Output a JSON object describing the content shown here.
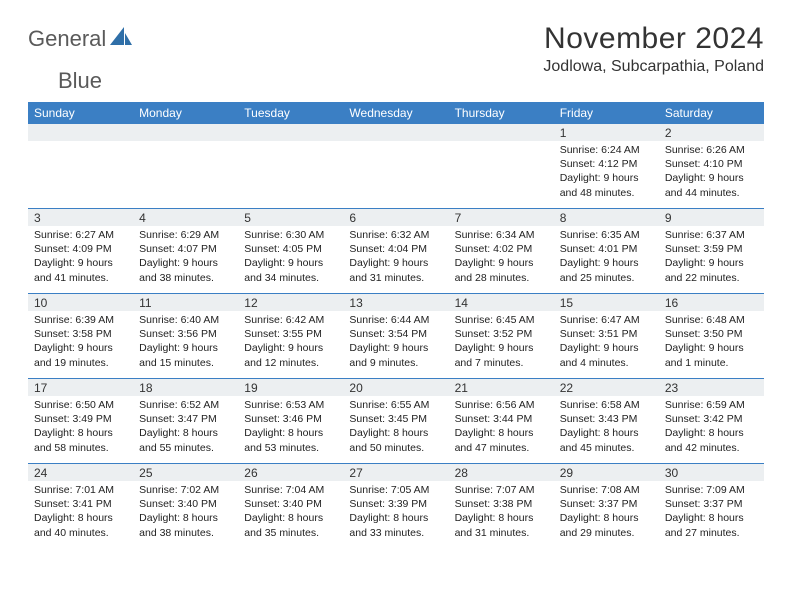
{
  "brand": {
    "word1": "General",
    "word2": "Blue"
  },
  "title": "November 2024",
  "location": "Jodlowa, Subcarpathia, Poland",
  "colors": {
    "header_bg": "#3b7fc4",
    "header_text": "#ffffff",
    "daynum_bg": "#eceff1",
    "rule": "#3b7fc4",
    "logo_gray": "#5a5a5a",
    "logo_blue": "#2f6fa8"
  },
  "day_names": [
    "Sunday",
    "Monday",
    "Tuesday",
    "Wednesday",
    "Thursday",
    "Friday",
    "Saturday"
  ],
  "weeks": [
    [
      {
        "n": "",
        "sr": "",
        "ss": "",
        "dl1": "",
        "dl2": ""
      },
      {
        "n": "",
        "sr": "",
        "ss": "",
        "dl1": "",
        "dl2": ""
      },
      {
        "n": "",
        "sr": "",
        "ss": "",
        "dl1": "",
        "dl2": ""
      },
      {
        "n": "",
        "sr": "",
        "ss": "",
        "dl1": "",
        "dl2": ""
      },
      {
        "n": "",
        "sr": "",
        "ss": "",
        "dl1": "",
        "dl2": ""
      },
      {
        "n": "1",
        "sr": "Sunrise: 6:24 AM",
        "ss": "Sunset: 4:12 PM",
        "dl1": "Daylight: 9 hours",
        "dl2": "and 48 minutes."
      },
      {
        "n": "2",
        "sr": "Sunrise: 6:26 AM",
        "ss": "Sunset: 4:10 PM",
        "dl1": "Daylight: 9 hours",
        "dl2": "and 44 minutes."
      }
    ],
    [
      {
        "n": "3",
        "sr": "Sunrise: 6:27 AM",
        "ss": "Sunset: 4:09 PM",
        "dl1": "Daylight: 9 hours",
        "dl2": "and 41 minutes."
      },
      {
        "n": "4",
        "sr": "Sunrise: 6:29 AM",
        "ss": "Sunset: 4:07 PM",
        "dl1": "Daylight: 9 hours",
        "dl2": "and 38 minutes."
      },
      {
        "n": "5",
        "sr": "Sunrise: 6:30 AM",
        "ss": "Sunset: 4:05 PM",
        "dl1": "Daylight: 9 hours",
        "dl2": "and 34 minutes."
      },
      {
        "n": "6",
        "sr": "Sunrise: 6:32 AM",
        "ss": "Sunset: 4:04 PM",
        "dl1": "Daylight: 9 hours",
        "dl2": "and 31 minutes."
      },
      {
        "n": "7",
        "sr": "Sunrise: 6:34 AM",
        "ss": "Sunset: 4:02 PM",
        "dl1": "Daylight: 9 hours",
        "dl2": "and 28 minutes."
      },
      {
        "n": "8",
        "sr": "Sunrise: 6:35 AM",
        "ss": "Sunset: 4:01 PM",
        "dl1": "Daylight: 9 hours",
        "dl2": "and 25 minutes."
      },
      {
        "n": "9",
        "sr": "Sunrise: 6:37 AM",
        "ss": "Sunset: 3:59 PM",
        "dl1": "Daylight: 9 hours",
        "dl2": "and 22 minutes."
      }
    ],
    [
      {
        "n": "10",
        "sr": "Sunrise: 6:39 AM",
        "ss": "Sunset: 3:58 PM",
        "dl1": "Daylight: 9 hours",
        "dl2": "and 19 minutes."
      },
      {
        "n": "11",
        "sr": "Sunrise: 6:40 AM",
        "ss": "Sunset: 3:56 PM",
        "dl1": "Daylight: 9 hours",
        "dl2": "and 15 minutes."
      },
      {
        "n": "12",
        "sr": "Sunrise: 6:42 AM",
        "ss": "Sunset: 3:55 PM",
        "dl1": "Daylight: 9 hours",
        "dl2": "and 12 minutes."
      },
      {
        "n": "13",
        "sr": "Sunrise: 6:44 AM",
        "ss": "Sunset: 3:54 PM",
        "dl1": "Daylight: 9 hours",
        "dl2": "and 9 minutes."
      },
      {
        "n": "14",
        "sr": "Sunrise: 6:45 AM",
        "ss": "Sunset: 3:52 PM",
        "dl1": "Daylight: 9 hours",
        "dl2": "and 7 minutes."
      },
      {
        "n": "15",
        "sr": "Sunrise: 6:47 AM",
        "ss": "Sunset: 3:51 PM",
        "dl1": "Daylight: 9 hours",
        "dl2": "and 4 minutes."
      },
      {
        "n": "16",
        "sr": "Sunrise: 6:48 AM",
        "ss": "Sunset: 3:50 PM",
        "dl1": "Daylight: 9 hours",
        "dl2": "and 1 minute."
      }
    ],
    [
      {
        "n": "17",
        "sr": "Sunrise: 6:50 AM",
        "ss": "Sunset: 3:49 PM",
        "dl1": "Daylight: 8 hours",
        "dl2": "and 58 minutes."
      },
      {
        "n": "18",
        "sr": "Sunrise: 6:52 AM",
        "ss": "Sunset: 3:47 PM",
        "dl1": "Daylight: 8 hours",
        "dl2": "and 55 minutes."
      },
      {
        "n": "19",
        "sr": "Sunrise: 6:53 AM",
        "ss": "Sunset: 3:46 PM",
        "dl1": "Daylight: 8 hours",
        "dl2": "and 53 minutes."
      },
      {
        "n": "20",
        "sr": "Sunrise: 6:55 AM",
        "ss": "Sunset: 3:45 PM",
        "dl1": "Daylight: 8 hours",
        "dl2": "and 50 minutes."
      },
      {
        "n": "21",
        "sr": "Sunrise: 6:56 AM",
        "ss": "Sunset: 3:44 PM",
        "dl1": "Daylight: 8 hours",
        "dl2": "and 47 minutes."
      },
      {
        "n": "22",
        "sr": "Sunrise: 6:58 AM",
        "ss": "Sunset: 3:43 PM",
        "dl1": "Daylight: 8 hours",
        "dl2": "and 45 minutes."
      },
      {
        "n": "23",
        "sr": "Sunrise: 6:59 AM",
        "ss": "Sunset: 3:42 PM",
        "dl1": "Daylight: 8 hours",
        "dl2": "and 42 minutes."
      }
    ],
    [
      {
        "n": "24",
        "sr": "Sunrise: 7:01 AM",
        "ss": "Sunset: 3:41 PM",
        "dl1": "Daylight: 8 hours",
        "dl2": "and 40 minutes."
      },
      {
        "n": "25",
        "sr": "Sunrise: 7:02 AM",
        "ss": "Sunset: 3:40 PM",
        "dl1": "Daylight: 8 hours",
        "dl2": "and 38 minutes."
      },
      {
        "n": "26",
        "sr": "Sunrise: 7:04 AM",
        "ss": "Sunset: 3:40 PM",
        "dl1": "Daylight: 8 hours",
        "dl2": "and 35 minutes."
      },
      {
        "n": "27",
        "sr": "Sunrise: 7:05 AM",
        "ss": "Sunset: 3:39 PM",
        "dl1": "Daylight: 8 hours",
        "dl2": "and 33 minutes."
      },
      {
        "n": "28",
        "sr": "Sunrise: 7:07 AM",
        "ss": "Sunset: 3:38 PM",
        "dl1": "Daylight: 8 hours",
        "dl2": "and 31 minutes."
      },
      {
        "n": "29",
        "sr": "Sunrise: 7:08 AM",
        "ss": "Sunset: 3:37 PM",
        "dl1": "Daylight: 8 hours",
        "dl2": "and 29 minutes."
      },
      {
        "n": "30",
        "sr": "Sunrise: 7:09 AM",
        "ss": "Sunset: 3:37 PM",
        "dl1": "Daylight: 8 hours",
        "dl2": "and 27 minutes."
      }
    ]
  ]
}
